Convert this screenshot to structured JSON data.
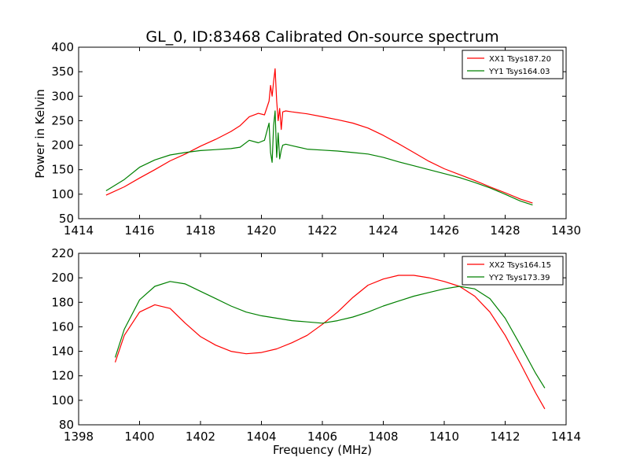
{
  "figure": {
    "title": "GL_0, ID:83468 Calibrated On-source spectrum",
    "xlabel": "Frequency (MHz)",
    "ylabel": "Power in Kelvin"
  },
  "colors": {
    "red": "#ff0000",
    "green": "#008000",
    "axes": "#000000",
    "background": "#ffffff"
  },
  "chart_data": [
    {
      "type": "line",
      "title": "GL_0, ID:83468 Calibrated On-source spectrum",
      "xlabel": "",
      "ylabel": "Power in Kelvin",
      "xlim": [
        1414,
        1430
      ],
      "ylim": [
        50,
        400
      ],
      "xticks": [
        1414,
        1416,
        1418,
        1420,
        1422,
        1424,
        1426,
        1428,
        1430
      ],
      "yticks": [
        50,
        100,
        150,
        200,
        250,
        300,
        350,
        400
      ],
      "grid": false,
      "legend": "top-right",
      "series": [
        {
          "name": "XX1 Tsys187.20",
          "color": "#ff0000",
          "x": [
            1414.9,
            1415.5,
            1416.0,
            1416.5,
            1417.0,
            1417.5,
            1418.0,
            1418.5,
            1419.0,
            1419.3,
            1419.6,
            1419.9,
            1420.1,
            1420.25,
            1420.3,
            1420.35,
            1420.4,
            1420.45,
            1420.5,
            1420.55,
            1420.6,
            1420.65,
            1420.7,
            1420.8,
            1421.0,
            1421.5,
            1422.0,
            1422.5,
            1423.0,
            1423.5,
            1424.0,
            1424.5,
            1425.0,
            1425.5,
            1426.0,
            1426.5,
            1427.0,
            1427.5,
            1428.0,
            1428.5,
            1428.9
          ],
          "values": [
            98,
            115,
            133,
            150,
            168,
            182,
            198,
            212,
            228,
            240,
            258,
            265,
            262,
            290,
            322,
            300,
            330,
            356,
            290,
            250,
            275,
            232,
            268,
            270,
            268,
            264,
            258,
            252,
            245,
            235,
            220,
            203,
            185,
            167,
            152,
            140,
            128,
            115,
            103,
            90,
            82
          ]
        },
        {
          "name": "YY1 Tsys164.03",
          "color": "#008000",
          "x": [
            1414.9,
            1415.5,
            1416.0,
            1416.5,
            1417.0,
            1417.5,
            1418.0,
            1418.5,
            1419.0,
            1419.3,
            1419.6,
            1419.9,
            1420.1,
            1420.25,
            1420.3,
            1420.35,
            1420.4,
            1420.45,
            1420.5,
            1420.55,
            1420.6,
            1420.65,
            1420.7,
            1420.8,
            1421.0,
            1421.5,
            1422.0,
            1422.5,
            1423.0,
            1423.5,
            1424.0,
            1424.5,
            1425.0,
            1425.5,
            1426.0,
            1426.5,
            1427.0,
            1427.5,
            1428.0,
            1428.5,
            1428.9
          ],
          "values": [
            107,
            130,
            155,
            170,
            180,
            185,
            189,
            191,
            193,
            196,
            210,
            205,
            210,
            245,
            185,
            165,
            240,
            270,
            175,
            225,
            172,
            190,
            200,
            202,
            199,
            192,
            190,
            188,
            185,
            182,
            175,
            166,
            158,
            150,
            142,
            134,
            124,
            113,
            100,
            86,
            78
          ]
        }
      ]
    },
    {
      "type": "line",
      "title": "",
      "xlabel": "Frequency (MHz)",
      "ylabel": "",
      "xlim": [
        1398,
        1414
      ],
      "ylim": [
        80,
        220
      ],
      "xticks": [
        1398,
        1400,
        1402,
        1404,
        1406,
        1408,
        1410,
        1412,
        1414
      ],
      "yticks": [
        80,
        100,
        120,
        140,
        160,
        180,
        200,
        220
      ],
      "grid": false,
      "legend": "top-right",
      "series": [
        {
          "name": "XX2 Tsys164.15",
          "color": "#ff0000",
          "x": [
            1399.2,
            1399.5,
            1400.0,
            1400.5,
            1401.0,
            1401.5,
            1402.0,
            1402.5,
            1403.0,
            1403.5,
            1404.0,
            1404.5,
            1405.0,
            1405.5,
            1406.0,
            1406.5,
            1407.0,
            1407.5,
            1408.0,
            1408.5,
            1409.0,
            1409.5,
            1410.0,
            1410.5,
            1411.0,
            1411.5,
            1412.0,
            1412.5,
            1413.0,
            1413.3
          ],
          "values": [
            131,
            153,
            172,
            178,
            175,
            163,
            152,
            145,
            140,
            138,
            139,
            142,
            147,
            153,
            162,
            172,
            184,
            194,
            199,
            202,
            202,
            200,
            197,
            193,
            185,
            172,
            153,
            130,
            106,
            93
          ]
        },
        {
          "name": "YY2 Tsys173.39",
          "color": "#008000",
          "x": [
            1399.2,
            1399.5,
            1400.0,
            1400.5,
            1401.0,
            1401.5,
            1402.0,
            1402.5,
            1403.0,
            1403.5,
            1404.0,
            1404.5,
            1405.0,
            1405.5,
            1406.0,
            1406.5,
            1407.0,
            1407.5,
            1408.0,
            1408.5,
            1409.0,
            1409.5,
            1410.0,
            1410.5,
            1411.0,
            1411.5,
            1412.0,
            1412.5,
            1413.0,
            1413.3
          ],
          "values": [
            135,
            158,
            182,
            193,
            197,
            195,
            189,
            183,
            177,
            172,
            169,
            167,
            165,
            164,
            163,
            165,
            168,
            172,
            177,
            181,
            185,
            188,
            191,
            193,
            191,
            183,
            167,
            145,
            122,
            110
          ]
        }
      ]
    }
  ]
}
